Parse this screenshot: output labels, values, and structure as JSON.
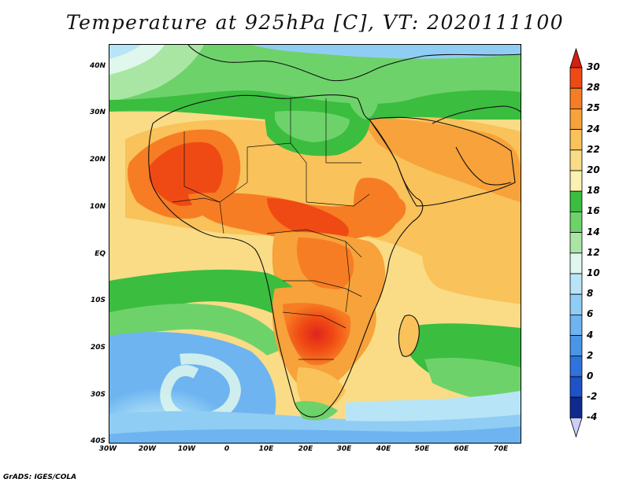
{
  "title": "Temperature at 925hPa [C], VT: 2020111100",
  "credit": "GrADS: IGES/COLA",
  "map": {
    "lat_labels": [
      "40N",
      "30N",
      "20N",
      "10N",
      "EQ",
      "10S",
      "20S",
      "30S",
      "40S"
    ],
    "lon_labels": [
      "30W",
      "20W",
      "10W",
      "0",
      "10E",
      "20E",
      "30E",
      "40E",
      "50E",
      "60E",
      "70E"
    ],
    "lat_range": [
      -40,
      45
    ],
    "lon_range": [
      -30,
      75
    ]
  },
  "colorbar": {
    "labels": [
      "30",
      "28",
      "25",
      "24",
      "22",
      "20",
      "18",
      "16",
      "14",
      "12",
      "10",
      "8",
      "6",
      "4",
      "2",
      "0",
      "-2",
      "-4"
    ],
    "colors": [
      "#e0241d",
      "#f04a14",
      "#f77d24",
      "#f7a23a",
      "#f9c25a",
      "#f9dc85",
      "#fbf1b0",
      "#3bbd3f",
      "#6ed26a",
      "#a9e6a4",
      "#dff7ec",
      "#b8e4f7",
      "#90cdf4",
      "#6db4f0",
      "#4a95e8",
      "#2f73dc",
      "#1e52c8",
      "#0e2a8e"
    ],
    "bottom_tip_color": "#cccffa",
    "top_tip_color": "#d42010"
  }
}
